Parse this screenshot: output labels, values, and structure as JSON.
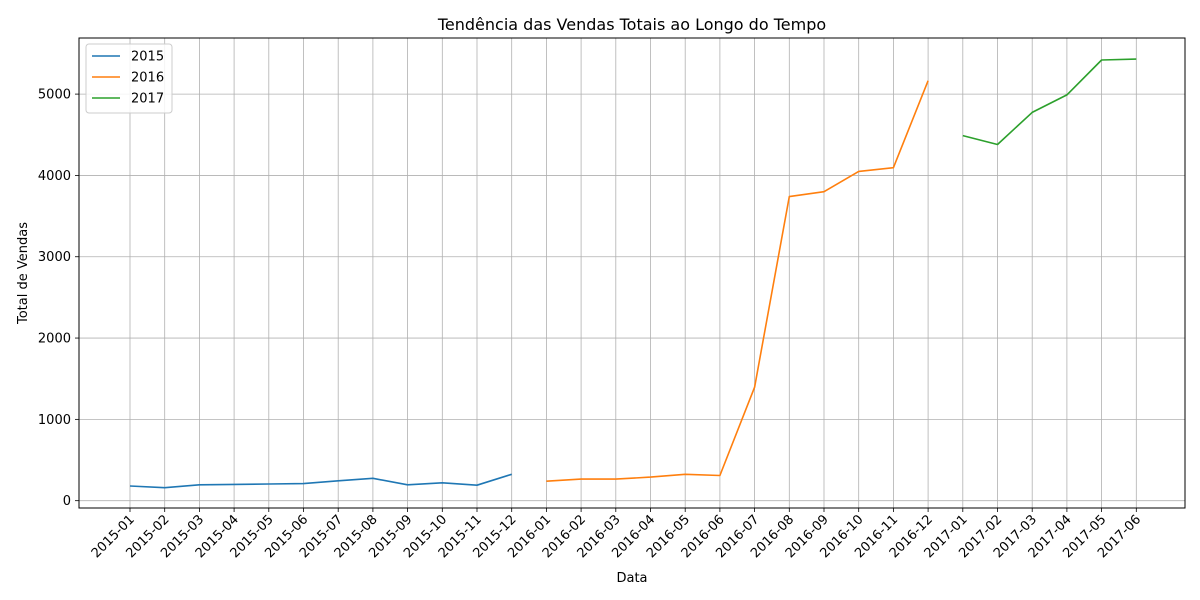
{
  "chart_data": {
    "type": "line",
    "title": "Tendência das Vendas Totais ao Longo do Tempo",
    "xlabel": "Data",
    "ylabel": "Total de Vendas",
    "ylim": [
      -90,
      5690
    ],
    "yticks": [
      0,
      1000,
      2000,
      3000,
      4000,
      5000
    ],
    "grid": true,
    "legend_position": "top-left",
    "categories": [
      "2015-01",
      "2015-02",
      "2015-03",
      "2015-04",
      "2015-05",
      "2015-06",
      "2015-07",
      "2015-08",
      "2015-09",
      "2015-10",
      "2015-11",
      "2015-12",
      "2016-01",
      "2016-02",
      "2016-03",
      "2016-04",
      "2016-05",
      "2016-06",
      "2016-07",
      "2016-08",
      "2016-09",
      "2016-10",
      "2016-11",
      "2016-12",
      "2017-01",
      "2017-02",
      "2017-03",
      "2017-04",
      "2017-05",
      "2017-06"
    ],
    "series": [
      {
        "name": "2015",
        "color": "#1f77b4",
        "x": [
          "2015-01",
          "2015-02",
          "2015-03",
          "2015-04",
          "2015-05",
          "2015-06",
          "2015-07",
          "2015-08",
          "2015-09",
          "2015-10",
          "2015-11",
          "2015-12"
        ],
        "values": [
          180,
          160,
          195,
          200,
          205,
          210,
          245,
          275,
          195,
          220,
          190,
          325
        ]
      },
      {
        "name": "2016",
        "color": "#ff7f0e",
        "x": [
          "2016-01",
          "2016-02",
          "2016-03",
          "2016-04",
          "2016-05",
          "2016-06",
          "2016-07",
          "2016-08",
          "2016-09",
          "2016-10",
          "2016-11",
          "2016-12"
        ],
        "values": [
          240,
          265,
          265,
          290,
          325,
          310,
          1395,
          3740,
          3800,
          4050,
          4095,
          5165
        ]
      },
      {
        "name": "2017",
        "color": "#2ca02c",
        "x": [
          "2017-01",
          "2017-02",
          "2017-03",
          "2017-04",
          "2017-05",
          "2017-06"
        ],
        "values": [
          4490,
          4380,
          4775,
          4990,
          5420,
          5430
        ]
      }
    ]
  }
}
